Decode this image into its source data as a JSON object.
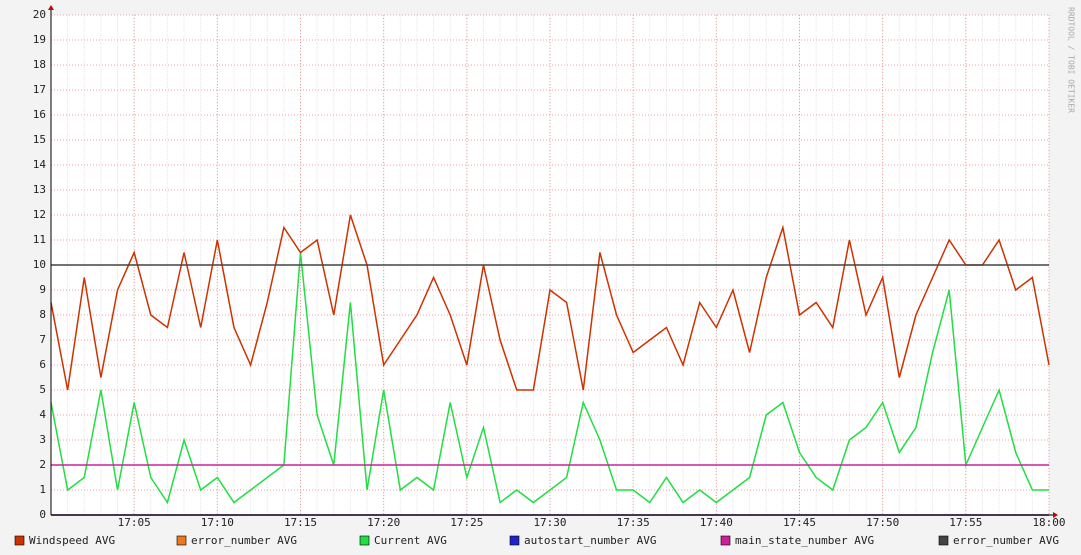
{
  "chart_data": {
    "type": "line",
    "watermark": "RRDTOOL / TOBI OETIKER",
    "x": [
      "17:00",
      "17:01",
      "17:02",
      "17:03",
      "17:04",
      "17:05",
      "17:06",
      "17:07",
      "17:08",
      "17:09",
      "17:10",
      "17:11",
      "17:12",
      "17:13",
      "17:14",
      "17:15",
      "17:16",
      "17:17",
      "17:18",
      "17:19",
      "17:20",
      "17:21",
      "17:22",
      "17:23",
      "17:24",
      "17:25",
      "17:26",
      "17:27",
      "17:28",
      "17:29",
      "17:30",
      "17:31",
      "17:32",
      "17:33",
      "17:34",
      "17:35",
      "17:36",
      "17:37",
      "17:38",
      "17:39",
      "17:40",
      "17:41",
      "17:42",
      "17:43",
      "17:44",
      "17:45",
      "17:46",
      "17:47",
      "17:48",
      "17:49",
      "17:50",
      "17:51",
      "17:52",
      "17:53",
      "17:54",
      "17:55",
      "17:56",
      "17:57",
      "17:58",
      "17:59",
      "18:00"
    ],
    "xticks": [
      "17:05",
      "17:10",
      "17:15",
      "17:20",
      "17:25",
      "17:30",
      "17:35",
      "17:40",
      "17:45",
      "17:50",
      "17:55",
      "18:00"
    ],
    "ylim": [
      0,
      20
    ],
    "yticks": [
      0,
      1,
      2,
      3,
      4,
      5,
      6,
      7,
      8,
      9,
      10,
      11,
      12,
      13,
      14,
      15,
      16,
      17,
      18,
      19,
      20
    ],
    "grid": true,
    "legend": "bottom",
    "series": [
      {
        "name": "Windspeed AVG",
        "color": "#cc3300",
        "values": [
          8.5,
          5,
          9.5,
          5.5,
          9,
          10.5,
          8,
          7.5,
          10.5,
          7.5,
          11,
          7.5,
          6,
          8.5,
          11.5,
          10.5,
          11,
          8,
          12,
          10,
          6,
          7,
          8,
          9.5,
          8,
          6,
          10,
          7,
          5,
          5,
          9,
          8.5,
          5,
          10.5,
          8,
          6.5,
          7,
          7.5,
          6,
          8.5,
          7.5,
          9,
          6.5,
          9.5,
          11.5,
          8,
          8.5,
          7.5,
          11,
          8,
          9.5,
          5.5,
          8,
          9.5,
          11,
          10,
          10,
          11,
          9,
          9.5,
          6
        ]
      },
      {
        "name": "error_number AVG",
        "color": "#ee7722",
        "values": [
          0,
          0,
          0,
          0,
          0,
          0,
          0,
          0,
          0,
          0,
          0,
          0,
          0,
          0,
          0,
          0,
          0,
          0,
          0,
          0,
          0,
          0,
          0,
          0,
          0,
          0,
          0,
          0,
          0,
          0,
          0,
          0,
          0,
          0,
          0,
          0,
          0,
          0,
          0,
          0,
          0,
          0,
          0,
          0,
          0,
          0,
          0,
          0,
          0,
          0,
          0,
          0,
          0,
          0,
          0,
          0,
          0,
          0,
          0,
          0,
          0
        ]
      },
      {
        "name": "Current AVG",
        "color": "#22dd44",
        "values": [
          4.5,
          1,
          1.5,
          5,
          1,
          4.5,
          1.5,
          0.5,
          3,
          1,
          1.5,
          0.5,
          1,
          1.5,
          2,
          10.5,
          4,
          2,
          8.5,
          1,
          5,
          1,
          1.5,
          1,
          4.5,
          1.5,
          3.5,
          0.5,
          1,
          0.5,
          1,
          1.5,
          4.5,
          3,
          1,
          1,
          0.5,
          1.5,
          0.5,
          1,
          0.5,
          1,
          1.5,
          4,
          4.5,
          2.5,
          1.5,
          1,
          3,
          3.5,
          4.5,
          2.5,
          3.5,
          6.5,
          9,
          2,
          3.5,
          5,
          2.5,
          1,
          1
        ]
      },
      {
        "name": "autostart_number AVG",
        "color": "#2222cc",
        "values": [
          0,
          0,
          0,
          0,
          0,
          0,
          0,
          0,
          0,
          0,
          0,
          0,
          0,
          0,
          0,
          0,
          0,
          0,
          0,
          0,
          0,
          0,
          0,
          0,
          0,
          0,
          0,
          0,
          0,
          0,
          0,
          0,
          0,
          0,
          0,
          0,
          0,
          0,
          0,
          0,
          0,
          0,
          0,
          0,
          0,
          0,
          0,
          0,
          0,
          0,
          0,
          0,
          0,
          0,
          0,
          0,
          0,
          0,
          0,
          0,
          0
        ]
      },
      {
        "name": "main_state_number AVG",
        "color": "#cc2299",
        "values": [
          2,
          2,
          2,
          2,
          2,
          2,
          2,
          2,
          2,
          2,
          2,
          2,
          2,
          2,
          2,
          2,
          2,
          2,
          2,
          2,
          2,
          2,
          2,
          2,
          2,
          2,
          2,
          2,
          2,
          2,
          2,
          2,
          2,
          2,
          2,
          2,
          2,
          2,
          2,
          2,
          2,
          2,
          2,
          2,
          2,
          2,
          2,
          2,
          2,
          2,
          2,
          2,
          2,
          2,
          2,
          2,
          2,
          2,
          2,
          2,
          2
        ]
      },
      {
        "name": "error_number AVG",
        "color": "#444444",
        "values": [
          10,
          10,
          10,
          10,
          10,
          10,
          10,
          10,
          10,
          10,
          10,
          10,
          10,
          10,
          10,
          10,
          10,
          10,
          10,
          10,
          10,
          10,
          10,
          10,
          10,
          10,
          10,
          10,
          10,
          10,
          10,
          10,
          10,
          10,
          10,
          10,
          10,
          10,
          10,
          10,
          10,
          10,
          10,
          10,
          10,
          10,
          10,
          10,
          10,
          10,
          10,
          10,
          10,
          10,
          10,
          10,
          10,
          10,
          10,
          10,
          10
        ]
      }
    ]
  }
}
